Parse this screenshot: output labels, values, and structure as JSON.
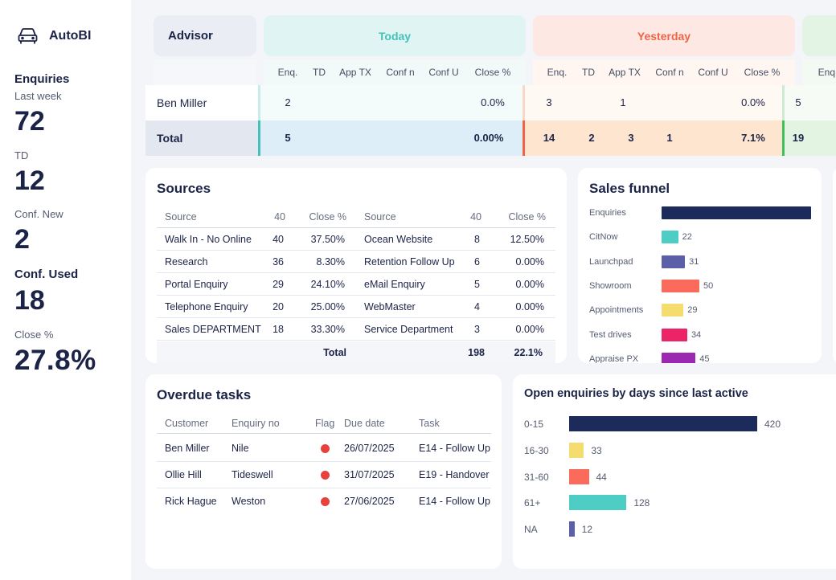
{
  "app": {
    "name": "AutoBI"
  },
  "sidebar": {
    "enquiries_heading": "Enquiries",
    "last_week_label": "Last week",
    "last_week_value": "72",
    "td_label": "TD",
    "td_value": "12",
    "conf_new_label": "Conf. New",
    "conf_new_value": "2",
    "conf_used_label": "Conf. Used",
    "conf_used_value": "18",
    "close_label": "Close %",
    "close_value": "27.8%"
  },
  "performance": {
    "advisor_header": "Advisor",
    "groups": [
      "Today",
      "Yesterday"
    ],
    "columns": [
      "Enq.",
      "TD",
      "App TX",
      "Conf n",
      "Conf U",
      "Close %"
    ],
    "third_group_first_column": "Enq.",
    "rows": [
      {
        "name": "Ben Miller",
        "today": [
          "2",
          "",
          "",
          "",
          "",
          "0.0%"
        ],
        "yesterday": [
          "3",
          "",
          "1",
          "",
          "",
          "0.0%"
        ],
        "third_enq": "5"
      },
      {
        "name": "Total",
        "today": [
          "5",
          "",
          "",
          "",
          "",
          "0.00%"
        ],
        "yesterday": [
          "14",
          "2",
          "3",
          "1",
          "",
          "7.1%"
        ],
        "third_enq": "19"
      }
    ]
  },
  "sources": {
    "title": "Sources",
    "headers": [
      "Source",
      "40",
      "Close %",
      "Source",
      "40",
      "Close %"
    ],
    "rows": [
      [
        "Walk In - No Online",
        "40",
        "37.50%",
        "Ocean Website",
        "8",
        "12.50%"
      ],
      [
        "Research",
        "36",
        "8.30%",
        "Retention Follow Up",
        "6",
        "0.00%"
      ],
      [
        "Portal Enquiry",
        "29",
        "24.10%",
        "eMail Enquiry",
        "5",
        "0.00%"
      ],
      [
        "Telephone Enquiry",
        "20",
        "25.00%",
        "WebMaster",
        "4",
        "0.00%"
      ],
      [
        "Sales DEPARTMENT",
        "18",
        "33.30%",
        "Service Department",
        "3",
        "0.00%"
      ]
    ],
    "total_label": "Total",
    "total_count": "198",
    "total_close": "22.1%"
  },
  "funnel": {
    "title": "Sales funnel",
    "items": [
      {
        "label": "Enquiries",
        "value": 198,
        "value_text": "",
        "color": "#1d2a5c"
      },
      {
        "label": "CitNow",
        "value": 22,
        "value_text": "22",
        "color": "#4ecdc4"
      },
      {
        "label": "Launchpad",
        "value": 31,
        "value_text": "31",
        "color": "#5a5fa8"
      },
      {
        "label": "Showroom",
        "value": 50,
        "value_text": "50",
        "color": "#fb6b5b"
      },
      {
        "label": "Appointments",
        "value": 29,
        "value_text": "29",
        "color": "#f5dc6e"
      },
      {
        "label": "Test drives",
        "value": 34,
        "value_text": "34",
        "color": "#ec2367"
      },
      {
        "label": "Appraise PX",
        "value": 45,
        "value_text": "45",
        "color": "#9c27b0"
      }
    ]
  },
  "overdue": {
    "title": "Overdue tasks",
    "headers": [
      "Customer",
      "Enquiry no",
      "Flag",
      "Due date",
      "Task"
    ],
    "flag_color": "#e8403a",
    "rows": [
      [
        "Ben Miller",
        "Nile",
        "",
        "26/07/2025",
        "E14 - Follow Up"
      ],
      [
        "Ollie Hill",
        "Tideswell",
        "",
        "31/07/2025",
        "E19 - Handover"
      ],
      [
        "Rick Hague",
        "Weston",
        "",
        "27/06/2025",
        "E14 - Follow Up"
      ]
    ]
  },
  "open_enquiries": {
    "title": "Open enquiries by days since last active",
    "items": [
      {
        "label": "0-15",
        "value": 420,
        "value_text": "420",
        "color": "#1d2a5c"
      },
      {
        "label": "16-30",
        "value": 33,
        "value_text": "33",
        "color": "#f5dc6e"
      },
      {
        "label": "31-60",
        "value": 44,
        "value_text": "44",
        "color": "#fb6b5b"
      },
      {
        "label": "61+",
        "value": 128,
        "value_text": "128",
        "color": "#4ecdc4"
      },
      {
        "label": "NA",
        "value": 12,
        "value_text": "12",
        "color": "#5a5fa8"
      }
    ]
  }
}
